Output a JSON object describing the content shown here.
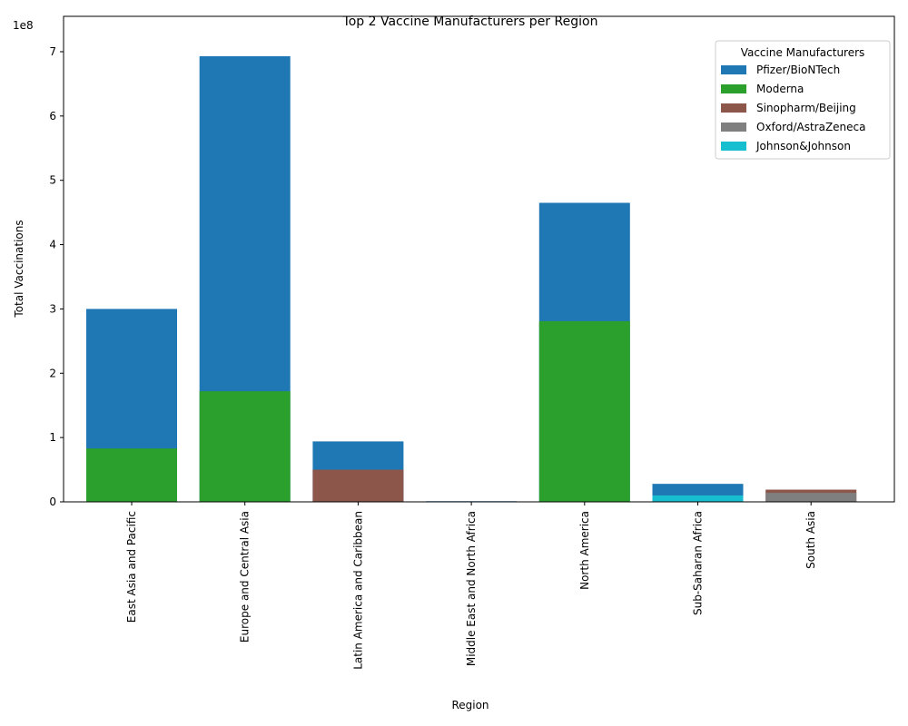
{
  "chart_data": {
    "type": "bar",
    "overlap": true,
    "title": "Top 2 Vaccine Manufacturers per Region",
    "x_label": "Region",
    "y_label": "Total Vaccinations",
    "y_scale_label": "1e8",
    "legend_title": "Vaccine Manufacturers",
    "legend_position": "upper right",
    "categories": [
      "East Asia and Pacific",
      "Europe and Central Asia",
      "Latin America and Caribbean",
      "Middle East and North Africa",
      "North America",
      "Sub-Saharan Africa",
      "South Asia"
    ],
    "series": [
      {
        "name": "Pfizer/BioNTech",
        "color": "#1f77b4",
        "values": [
          3.0,
          6.93,
          0.94,
          0.01,
          4.65,
          0.28,
          null
        ]
      },
      {
        "name": "Moderna",
        "color": "#2ca02c",
        "values": [
          0.83,
          1.72,
          null,
          null,
          2.81,
          null,
          null
        ]
      },
      {
        "name": "Sinopharm/Beijing",
        "color": "#8c564b",
        "values": [
          null,
          null,
          0.5,
          null,
          null,
          null,
          0.19
        ]
      },
      {
        "name": "Oxford/AstraZeneca",
        "color": "#7f7f7f",
        "values": [
          null,
          null,
          null,
          null,
          null,
          null,
          0.14
        ]
      },
      {
        "name": "Johnson&Johnson",
        "color": "#17becf",
        "values": [
          null,
          null,
          null,
          null,
          null,
          0.1,
          null
        ]
      }
    ],
    "ylim": [
      0,
      7.55
    ],
    "yticks": [
      0,
      1,
      2,
      3,
      4,
      5,
      6,
      7
    ]
  }
}
